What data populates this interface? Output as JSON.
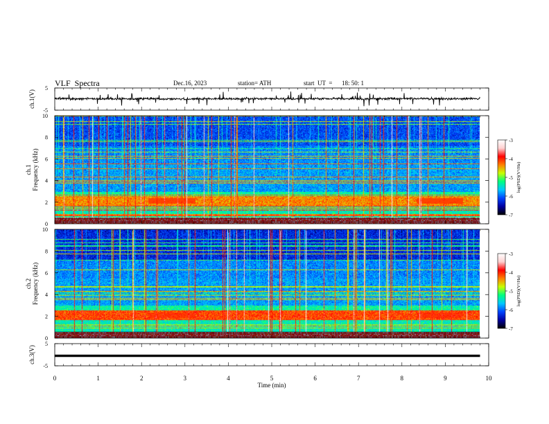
{
  "header": {
    "title": "VLF  Spectra",
    "date": "Dec.16, 2023",
    "station": "station= ATH",
    "start_label": "start  UT  =",
    "start_value": "18: 50: 1"
  },
  "colors": {
    "trace": "#000000",
    "colormap": [
      "#000000",
      "#0000a0",
      "#0044ff",
      "#00c8ff",
      "#00ff80",
      "#c8ff00",
      "#ff8000",
      "#ff0000",
      "#ffd0d0",
      "#ffffff"
    ]
  },
  "chart_data": [
    {
      "type": "line",
      "panel": "ch1-waveform",
      "ylabel": "ch.1(V)",
      "yticks": [
        "5",
        "-5"
      ],
      "ylim": [
        -5,
        5
      ],
      "xlim": [
        0,
        10
      ],
      "series": [
        {
          "x": [
            0,
            1,
            2,
            3,
            4,
            5,
            6,
            7,
            8,
            9,
            9.8
          ],
          "values": [
            0.3,
            0.1,
            0.2,
            0.0,
            0.2,
            0.1,
            0.2,
            0.1,
            0.2,
            0.1,
            0.2
          ]
        }
      ],
      "data_end_min": 9.8
    },
    {
      "type": "heatmap",
      "panel": "ch1-spectrogram",
      "ylabel": "ch.1\nFrequency (kHz)",
      "yticks": [
        "0",
        "2",
        "4",
        "6",
        "8",
        "10"
      ],
      "ylim": [
        0,
        10
      ],
      "xlim": [
        0,
        10
      ],
      "data_end_min": 9.8,
      "colorbar": {
        "label": "log(PSD)(V²/Hz)",
        "range": [
          -7,
          -3
        ],
        "ticks": [
          "-3",
          "-4",
          "-5",
          "-6",
          "-7"
        ]
      }
    },
    {
      "type": "heatmap",
      "panel": "ch2-spectrogram",
      "ylabel": "ch.2\nFrequency (kHz)",
      "yticks": [
        "0",
        "2",
        "4",
        "6",
        "8",
        "10"
      ],
      "ylim": [
        0,
        10
      ],
      "xlim": [
        0,
        10
      ],
      "data_end_min": 9.8,
      "colorbar": {
        "label": "log(PSD)(V²/Hz)",
        "range": [
          -7,
          -3
        ],
        "ticks": [
          "-3",
          "-4",
          "-5",
          "-6",
          "-7"
        ]
      }
    },
    {
      "type": "line",
      "panel": "ch3-waveform",
      "ylabel": "ch.3(V)",
      "yticks": [
        "5",
        "-5"
      ],
      "ylim": [
        -5,
        5
      ],
      "xlim": [
        0,
        10
      ],
      "series": [
        {
          "x": [
            0,
            9.8
          ],
          "values": [
            -0.5,
            -0.5
          ]
        }
      ],
      "data_end_min": 9.8
    }
  ],
  "time_axis": {
    "xlabel": "Time  (min)",
    "ticks": [
      "0",
      "1",
      "2",
      "3",
      "4",
      "5",
      "6",
      "7",
      "8",
      "9",
      "10"
    ]
  }
}
